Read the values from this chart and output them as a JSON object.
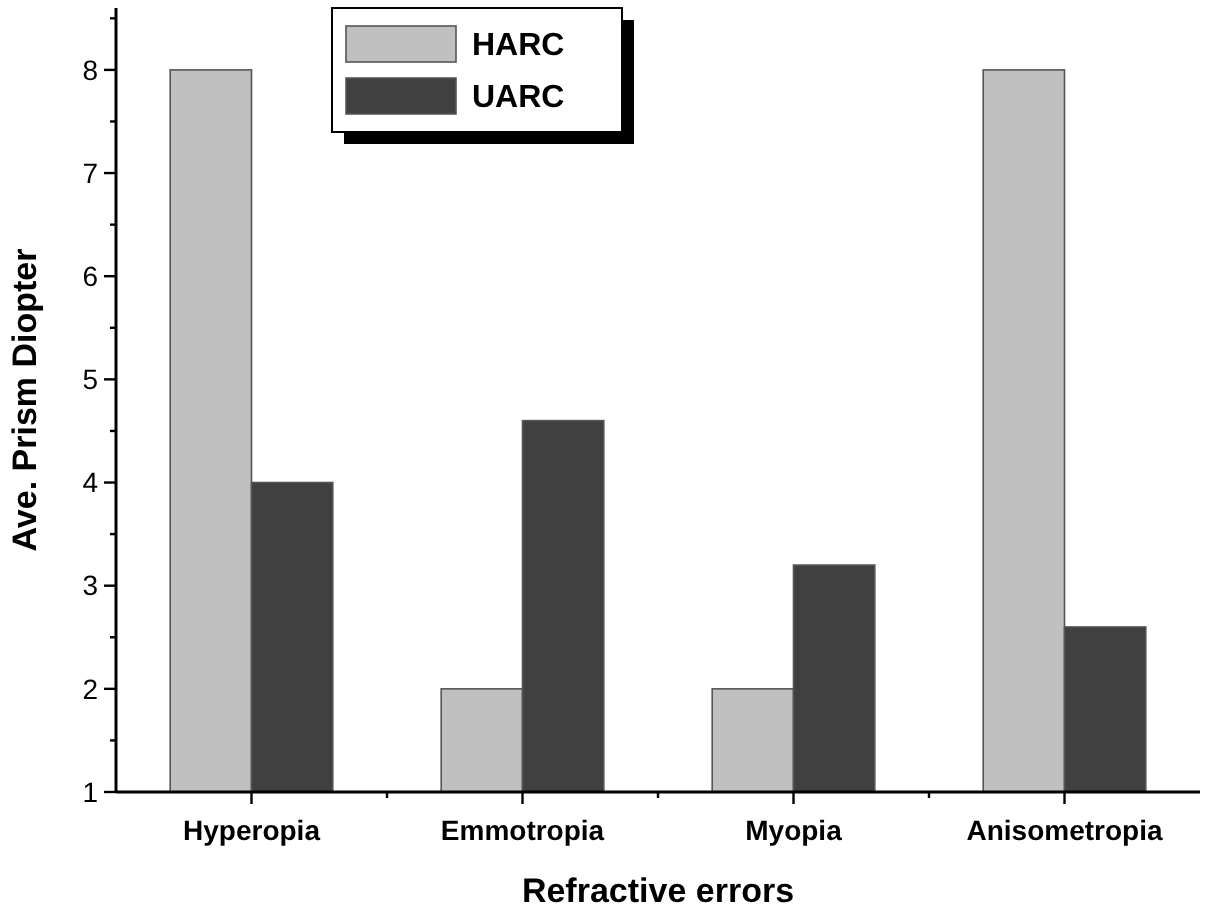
{
  "chart_data": {
    "type": "bar",
    "xlabel": "Refractive errors",
    "ylabel": "Ave. Prism Diopter",
    "categories": [
      "Hyperopia",
      "Emmotropia",
      "Myopia",
      "Anisometropia"
    ],
    "series": [
      {
        "name": "HARC",
        "color": "#c0c0c0",
        "values": [
          8,
          2,
          2,
          8
        ]
      },
      {
        "name": "UARC",
        "color": "#404040",
        "values": [
          4,
          4.6,
          3.2,
          2.6
        ]
      }
    ],
    "ylim": [
      1,
      8.6
    ],
    "yticks": [
      1,
      {
        "value": 1.5,
        "label": null
      },
      2,
      {
        "value": 2.5,
        "label": null
      },
      3,
      {
        "value": 3.5,
        "label": null
      },
      4,
      {
        "value": 4.5,
        "label": null
      },
      5,
      {
        "value": 5.5,
        "label": null
      },
      6,
      {
        "value": 6.5,
        "label": null
      },
      7,
      {
        "value": 7.5,
        "label": null
      },
      8,
      {
        "value": 8.5,
        "label": null
      }
    ],
    "grid": false,
    "legend": "top left"
  }
}
